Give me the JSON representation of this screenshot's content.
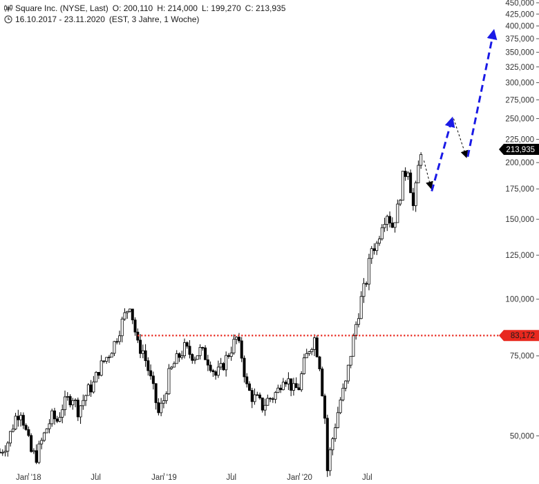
{
  "header": {
    "symbol": "Square Inc. (NYSE, Last)",
    "open": "O: 200,110",
    "high": "H: 214,000",
    "low": "L: 199,270",
    "close": "C: 213,935",
    "range": "16.10.2017 - 23.11.2020",
    "meta": "(EST, 3 Jahre, 1 Woche)",
    "symbol_icon": "candlestick-icon",
    "range_icon": "clock-icon"
  },
  "colors": {
    "candle": "#000000",
    "level_line": "#e8281e",
    "projection": "#1a1ae6",
    "last_price_badge": "#000000",
    "level_badge": "#e8281e"
  },
  "chart_data": {
    "type": "candlestick",
    "scale": "log",
    "ylim": [
      42000,
      450000
    ],
    "y_ticks": [
      {
        "v": 450000,
        "label": "450,000"
      },
      {
        "v": 425000,
        "label": "425,000"
      },
      {
        "v": 400000,
        "label": "400,000"
      },
      {
        "v": 375000,
        "label": "375,000"
      },
      {
        "v": 350000,
        "label": "350,000"
      },
      {
        "v": 325000,
        "label": "325,000"
      },
      {
        "v": 300000,
        "label": "300,000"
      },
      {
        "v": 275000,
        "label": "275,000"
      },
      {
        "v": 250000,
        "label": "250,000"
      },
      {
        "v": 225000,
        "label": "225,000"
      },
      {
        "v": 200000,
        "label": "200,000"
      },
      {
        "v": 175000,
        "label": "175,000"
      },
      {
        "v": 150000,
        "label": "150,000"
      },
      {
        "v": 125000,
        "label": "125,000"
      },
      {
        "v": 100000,
        "label": "100,000"
      },
      {
        "v": 75000,
        "label": "75,000"
      },
      {
        "v": 50000,
        "label": "50,000"
      }
    ],
    "x_ticks": [
      {
        "date": "2018-01-01",
        "label": "Jan '18"
      },
      {
        "date": "2018-07-01",
        "label": "Jul"
      },
      {
        "date": "2019-01-01",
        "label": "Jan '19"
      },
      {
        "date": "2019-07-01",
        "label": "Jul"
      },
      {
        "date": "2020-01-01",
        "label": "Jan '20"
      },
      {
        "date": "2020-07-01",
        "label": "Jul"
      }
    ],
    "xlim": [
      "2017-10-16",
      "2021-06-21"
    ],
    "last_price": {
      "value": 213935,
      "label": "213,935"
    },
    "horizontal_level": {
      "value": 83172,
      "label": "83,172",
      "from": "2018-10-22",
      "style": "dotted"
    },
    "series": [
      {
        "kind": "price_path",
        "points": [
          {
            "date": "2017-10-16",
            "value": 46000
          },
          {
            "date": "2017-11-06",
            "value": 48500
          },
          {
            "date": "2017-11-27",
            "value": 55000
          },
          {
            "date": "2017-12-11",
            "value": 57000
          },
          {
            "date": "2017-12-25",
            "value": 51000
          },
          {
            "date": "2018-01-08",
            "value": 46000
          },
          {
            "date": "2018-01-22",
            "value": 45000
          },
          {
            "date": "2018-02-05",
            "value": 48500
          },
          {
            "date": "2018-02-19",
            "value": 52000
          },
          {
            "date": "2018-03-05",
            "value": 55000
          },
          {
            "date": "2018-03-19",
            "value": 54000
          },
          {
            "date": "2018-04-02",
            "value": 58000
          },
          {
            "date": "2018-04-16",
            "value": 60000
          },
          {
            "date": "2018-04-30",
            "value": 61000
          },
          {
            "date": "2018-05-14",
            "value": 57000
          },
          {
            "date": "2018-05-28",
            "value": 60000
          },
          {
            "date": "2018-06-11",
            "value": 63000
          },
          {
            "date": "2018-06-25",
            "value": 65000
          },
          {
            "date": "2018-07-09",
            "value": 70000
          },
          {
            "date": "2018-07-23",
            "value": 73000
          },
          {
            "date": "2018-08-06",
            "value": 76000
          },
          {
            "date": "2018-08-20",
            "value": 80000
          },
          {
            "date": "2018-09-03",
            "value": 86000
          },
          {
            "date": "2018-09-17",
            "value": 92000
          },
          {
            "date": "2018-10-01",
            "value": 98000
          },
          {
            "date": "2018-10-15",
            "value": 85000
          },
          {
            "date": "2018-10-22",
            "value": 79000
          },
          {
            "date": "2018-11-05",
            "value": 77000
          },
          {
            "date": "2018-11-19",
            "value": 70000
          },
          {
            "date": "2018-12-03",
            "value": 63000
          },
          {
            "date": "2018-12-17",
            "value": 56000
          },
          {
            "date": "2018-12-31",
            "value": 60000
          },
          {
            "date": "2019-01-14",
            "value": 68000
          },
          {
            "date": "2019-01-28",
            "value": 72000
          },
          {
            "date": "2019-02-11",
            "value": 75000
          },
          {
            "date": "2019-02-25",
            "value": 78000
          },
          {
            "date": "2019-03-11",
            "value": 76000
          },
          {
            "date": "2019-03-25",
            "value": 75000
          },
          {
            "date": "2019-04-08",
            "value": 77000
          },
          {
            "date": "2019-04-22",
            "value": 75000
          },
          {
            "date": "2019-05-06",
            "value": 72000
          },
          {
            "date": "2019-05-20",
            "value": 68000
          },
          {
            "date": "2019-06-03",
            "value": 70000
          },
          {
            "date": "2019-06-17",
            "value": 74000
          },
          {
            "date": "2019-07-01",
            "value": 78000
          },
          {
            "date": "2019-07-15",
            "value": 82000
          },
          {
            "date": "2019-07-29",
            "value": 75000
          },
          {
            "date": "2019-08-12",
            "value": 64000
          },
          {
            "date": "2019-08-26",
            "value": 61000
          },
          {
            "date": "2019-09-09",
            "value": 60000
          },
          {
            "date": "2019-09-23",
            "value": 58000
          },
          {
            "date": "2019-10-07",
            "value": 60000
          },
          {
            "date": "2019-10-21",
            "value": 61000
          },
          {
            "date": "2019-11-04",
            "value": 63000
          },
          {
            "date": "2019-11-18",
            "value": 68000
          },
          {
            "date": "2019-12-02",
            "value": 66000
          },
          {
            "date": "2019-12-16",
            "value": 63000
          },
          {
            "date": "2019-12-30",
            "value": 64000
          },
          {
            "date": "2020-01-13",
            "value": 72000
          },
          {
            "date": "2020-01-27",
            "value": 78000
          },
          {
            "date": "2020-02-10",
            "value": 82000
          },
          {
            "date": "2020-02-24",
            "value": 72000
          },
          {
            "date": "2020-03-09",
            "value": 55000
          },
          {
            "date": "2020-03-16",
            "value": 42000
          },
          {
            "date": "2020-03-23",
            "value": 46000
          },
          {
            "date": "2020-04-06",
            "value": 53000
          },
          {
            "date": "2020-04-20",
            "value": 60000
          },
          {
            "date": "2020-05-04",
            "value": 65000
          },
          {
            "date": "2020-05-18",
            "value": 76000
          },
          {
            "date": "2020-06-01",
            "value": 88000
          },
          {
            "date": "2020-06-15",
            "value": 100000
          },
          {
            "date": "2020-06-29",
            "value": 110000
          },
          {
            "date": "2020-07-13",
            "value": 130000
          },
          {
            "date": "2020-07-27",
            "value": 132000
          },
          {
            "date": "2020-08-10",
            "value": 148000
          },
          {
            "date": "2020-08-24",
            "value": 155000
          },
          {
            "date": "2020-09-07",
            "value": 145000
          },
          {
            "date": "2020-09-21",
            "value": 158000
          },
          {
            "date": "2020-10-05",
            "value": 185000
          },
          {
            "date": "2020-10-19",
            "value": 195000
          },
          {
            "date": "2020-11-02",
            "value": 160000
          },
          {
            "date": "2020-11-09",
            "value": 175000
          },
          {
            "date": "2020-11-16",
            "value": 195000
          },
          {
            "date": "2020-11-23",
            "value": 213935
          }
        ]
      },
      {
        "kind": "projection",
        "style": "thin-dashed",
        "color": "#000000",
        "points": [
          {
            "date": "2020-12-01",
            "value": 202000
          },
          {
            "date": "2020-12-20",
            "value": 176000
          }
        ]
      },
      {
        "kind": "projection",
        "style": "thick-dashed",
        "color": "#1a1ae6",
        "points": [
          {
            "date": "2020-12-22",
            "value": 173000
          },
          {
            "date": "2021-02-15",
            "value": 250000
          }
        ]
      },
      {
        "kind": "projection",
        "style": "thin-dashed",
        "color": "#000000",
        "points": [
          {
            "date": "2021-02-19",
            "value": 250000
          },
          {
            "date": "2021-03-25",
            "value": 206000
          }
        ]
      },
      {
        "kind": "projection",
        "style": "thick-dashed",
        "color": "#1a1ae6",
        "points": [
          {
            "date": "2021-03-29",
            "value": 206000
          },
          {
            "date": "2021-06-07",
            "value": 390000
          }
        ]
      }
    ]
  }
}
